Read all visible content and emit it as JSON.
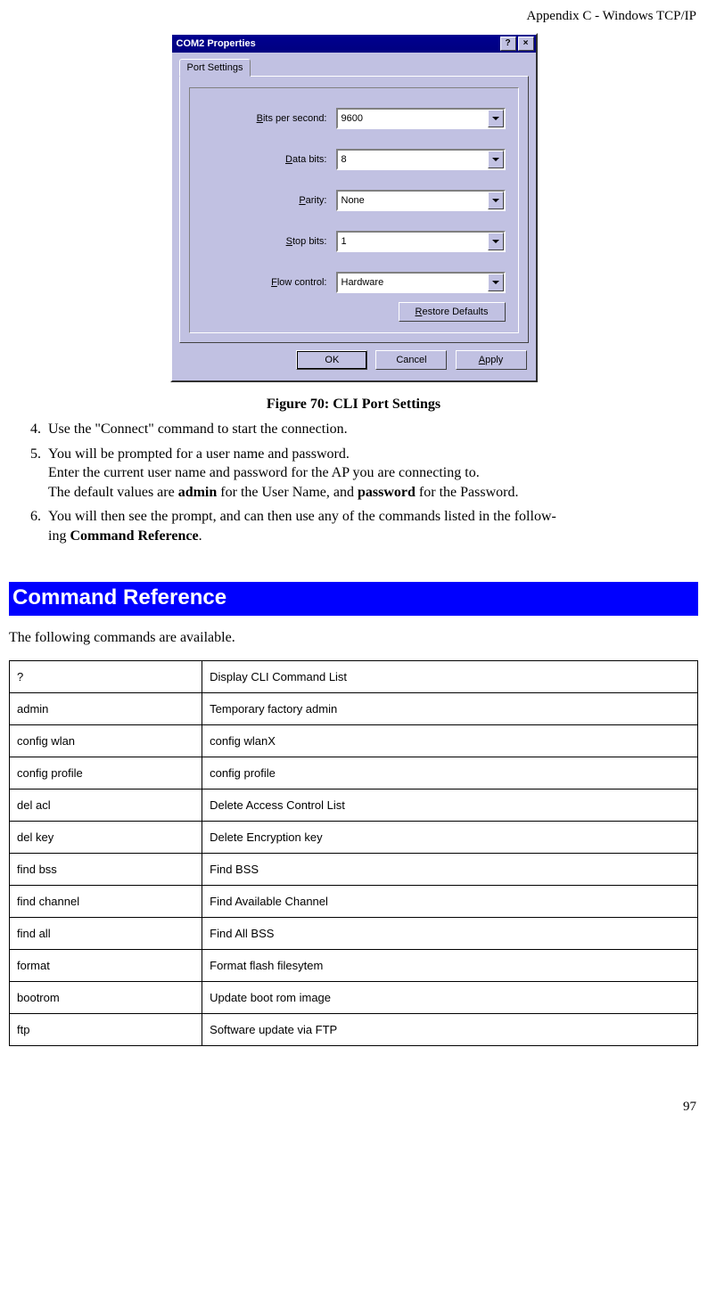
{
  "header": {
    "appendix": "Appendix C - Windows TCP/IP"
  },
  "dialog": {
    "title": "COM2 Properties",
    "tab_label": "Port Settings",
    "fields": {
      "bits_label": "Bits per second:",
      "bits_value": "9600",
      "databits_label": "Data bits:",
      "databits_value": "8",
      "parity_label": "Parity:",
      "parity_value": "None",
      "stopbits_label": "Stop bits:",
      "stopbits_value": "1",
      "flow_label": "Flow control:",
      "flow_value": "Hardware"
    },
    "restore_btn": "Restore Defaults",
    "ok_btn": "OK",
    "cancel_btn": "Cancel",
    "apply_btn": "Apply"
  },
  "figure_caption": "Figure 70: CLI Port Settings",
  "steps": {
    "s4": "Use the \"Connect\" command to start the connection.",
    "s5a": "You will be prompted for a user name and password.",
    "s5b": "Enter the current user name and password for the AP you are connecting to.",
    "s5c_pre": "The default values are ",
    "s5c_b1": "admin",
    "s5c_mid": " for the User Name, and ",
    "s5c_b2": "password",
    "s5c_post": " for the Password.",
    "s6a": "You will then see the prompt, and can then use any of the commands listed in the follow-",
    "s6b_pre": "ing ",
    "s6b_bold": "Command Reference",
    "s6b_post": "."
  },
  "section_heading": "Command Reference",
  "intro": "The following commands are available.",
  "table": {
    "rows": [
      {
        "cmd": "?",
        "desc": "Display CLI Command List"
      },
      {
        "cmd": "admin",
        "desc": "Temporary factory admin"
      },
      {
        "cmd": "config wlan",
        "desc": "config wlanX"
      },
      {
        "cmd": "config profile",
        "desc": "config profile"
      },
      {
        "cmd": "del acl",
        "desc": "Delete Access Control List"
      },
      {
        "cmd": "del key",
        "desc": "Delete Encryption key"
      },
      {
        "cmd": "find bss",
        "desc": "Find BSS"
      },
      {
        "cmd": "find channel",
        "desc": "Find Available Channel"
      },
      {
        "cmd": "find all",
        "desc": "Find All BSS"
      },
      {
        "cmd": "format",
        "desc": "Format flash filesytem"
      },
      {
        "cmd": "bootrom",
        "desc": "Update boot rom image"
      },
      {
        "cmd": "ftp",
        "desc": "Software update via FTP"
      }
    ]
  },
  "page_number": "97"
}
